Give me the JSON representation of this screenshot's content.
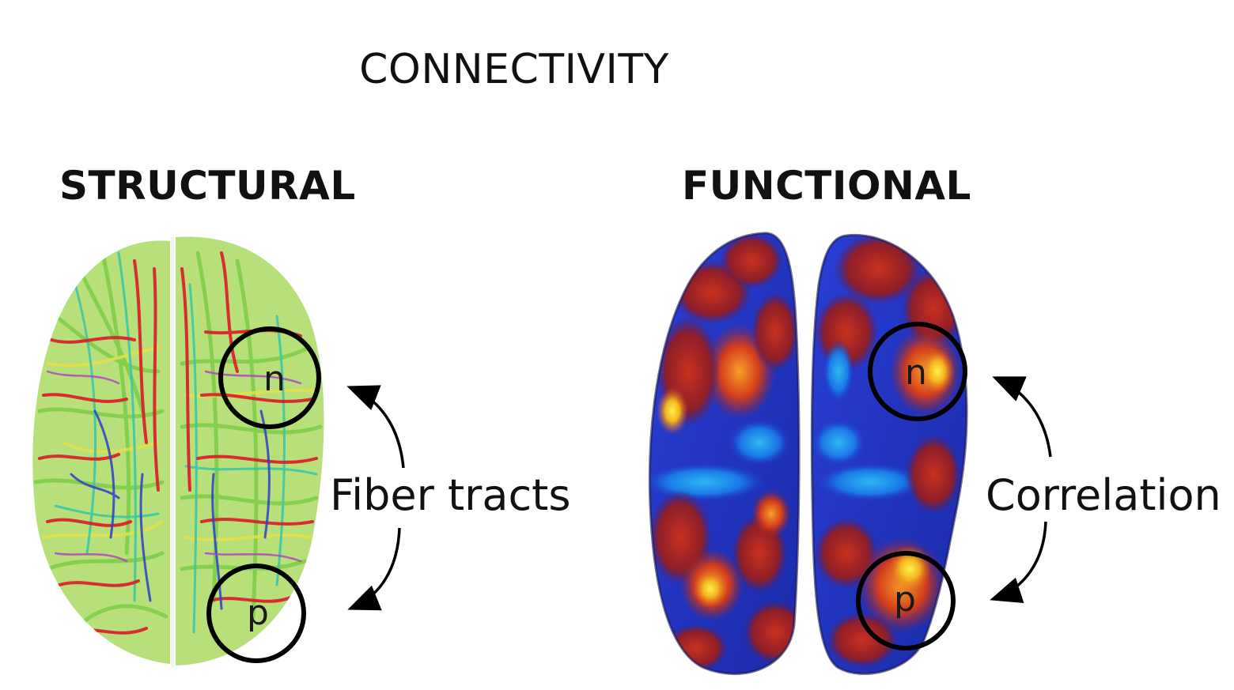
{
  "title": "CONNECTIVITY",
  "panels": {
    "structural": {
      "heading": "STRUCTURAL",
      "node_top": "n",
      "node_bottom": "p",
      "link_label": "Fiber tracts"
    },
    "functional": {
      "heading": "FUNCTIONAL",
      "node_top": "n",
      "node_bottom": "p",
      "link_label": "Correlation"
    }
  },
  "colors": {
    "tract_green": "#8fd14f",
    "tract_red": "#d9232d",
    "tract_blue": "#2b3fc9",
    "surface_blue": "#1f35c8",
    "surface_red": "#c0261c",
    "surface_orange": "#f07a1a",
    "surface_yellow": "#f4e21e",
    "outline": "#000000"
  }
}
